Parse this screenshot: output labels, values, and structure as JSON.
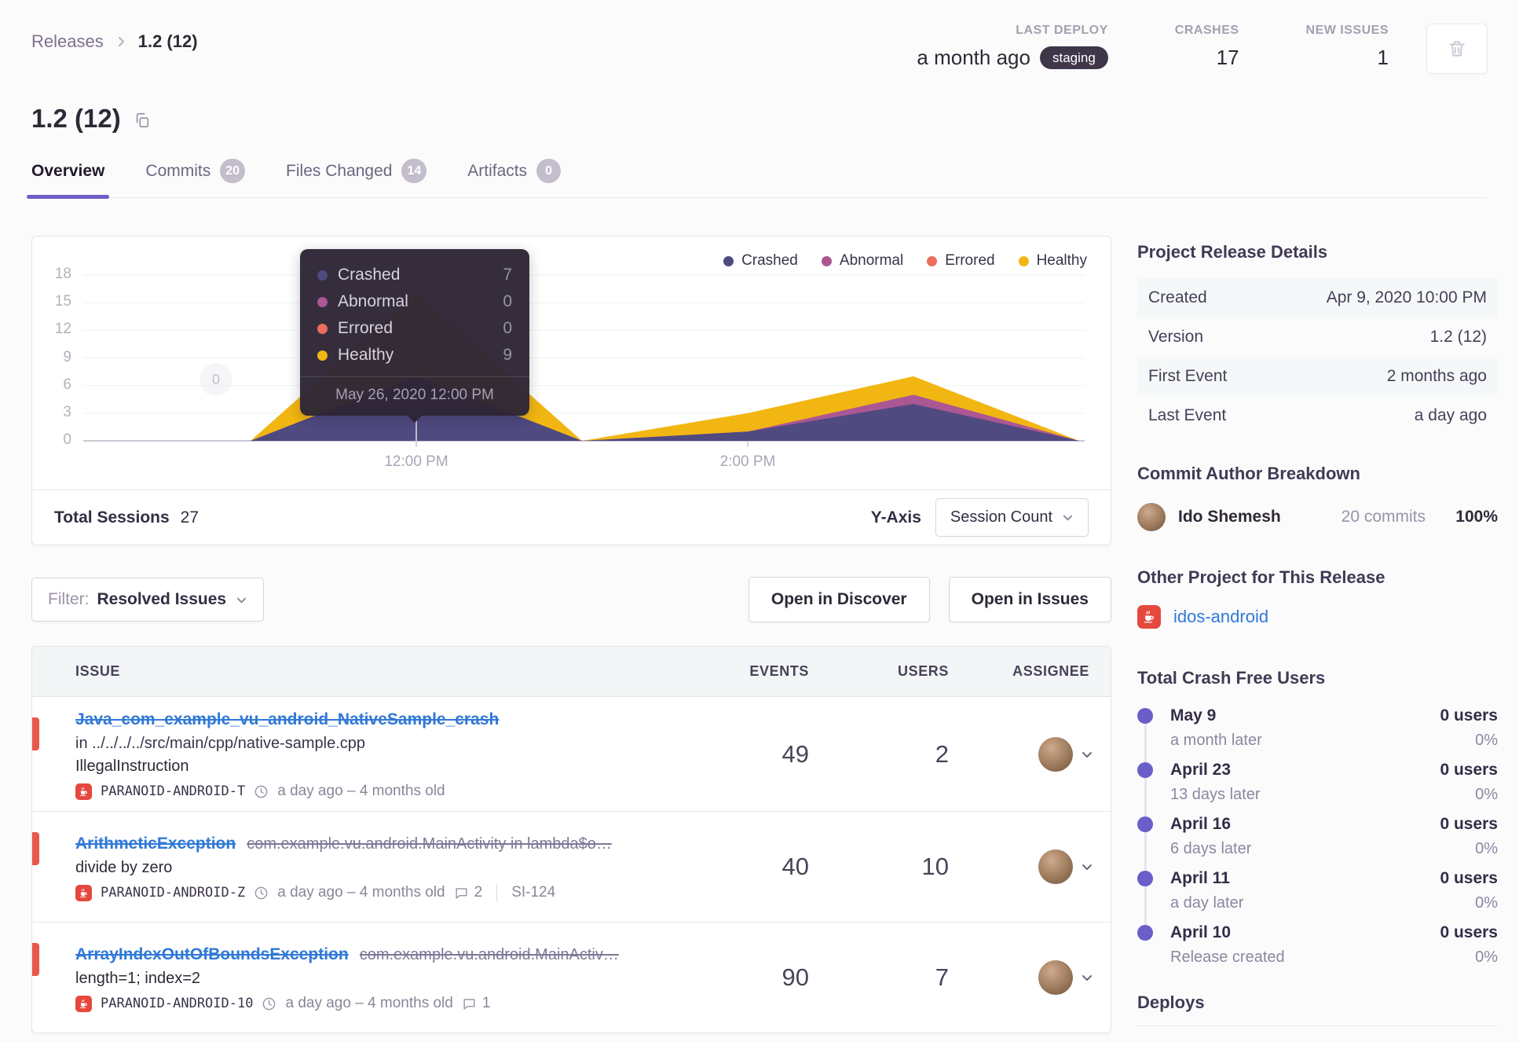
{
  "breadcrumb": {
    "parent": "Releases",
    "current": "1.2 (12)"
  },
  "header_stats": {
    "last_deploy": {
      "label": "LAST DEPLOY",
      "value": "a month ago",
      "env": "staging"
    },
    "crashes": {
      "label": "CRASHES",
      "value": "17"
    },
    "new_issues": {
      "label": "NEW ISSUES",
      "value": "1"
    }
  },
  "page_title": "1.2 (12)",
  "tabs": [
    {
      "label": "Overview"
    },
    {
      "label": "Commits",
      "badge": "20"
    },
    {
      "label": "Files Changed",
      "badge": "14"
    },
    {
      "label": "Artifacts",
      "badge": "0"
    }
  ],
  "chart_card": {
    "tooltip": {
      "values": [
        "7",
        "0",
        "0",
        "9"
      ],
      "date": "May 26, 2020 12:00 PM"
    },
    "overlay_marker": "0",
    "footer": {
      "total_label": "Total Sessions",
      "total_value": "27",
      "yaxis_label": "Y-Axis",
      "yaxis_value": "Session Count"
    }
  },
  "chart_data": {
    "type": "area",
    "stacked": true,
    "title": "Release session health over time",
    "x": [
      "10:00 AM",
      "11:00 AM",
      "12:00 PM",
      "1:00 PM",
      "2:00 PM",
      "3:00 PM",
      "4:00 PM"
    ],
    "x_axis_labels": [
      {
        "label": "12:00 PM",
        "index": 2
      },
      {
        "label": "2:00 PM",
        "index": 4
      }
    ],
    "series": [
      {
        "name": "Crashed",
        "color": "#4F4A80",
        "values": [
          0,
          0,
          7,
          0,
          1,
          4,
          0
        ]
      },
      {
        "name": "Abnormal",
        "color": "#AB5793",
        "values": [
          0,
          0,
          0,
          0,
          0,
          1,
          0
        ]
      },
      {
        "name": "Errored",
        "color": "#EC6D5E",
        "values": [
          0,
          0,
          0,
          0,
          0,
          0,
          0
        ]
      },
      {
        "name": "Healthy",
        "color": "#F1B611",
        "values": [
          0,
          0,
          9,
          0,
          2,
          2,
          0
        ]
      }
    ],
    "ylim": [
      0,
      18
    ],
    "yticks": [
      0,
      3,
      6,
      9,
      12,
      15,
      18
    ],
    "legend_position": "top-right",
    "grid": true,
    "hover_point": {
      "x": "12:00 PM",
      "crashed": 7,
      "abnormal": 0,
      "errored": 0,
      "healthy": 9
    },
    "total_sessions": 27
  },
  "filter_bar": {
    "filter_label": "Filter:",
    "filter_value": "Resolved Issues",
    "open_discover": "Open in Discover",
    "open_issues": "Open in Issues"
  },
  "issues_table": {
    "columns": [
      "ISSUE",
      "EVENTS",
      "USERS",
      "ASSIGNEE"
    ],
    "rows": [
      {
        "title": "Java_com_example_vu_android_NativeSample_crash",
        "location": "in ../../../../src/main/cpp/native-sample.cpp",
        "message": "IllegalInstruction",
        "project": "PARANOID-ANDROID-T",
        "age": "a day ago – 4 months old",
        "events": "49",
        "users": "2"
      },
      {
        "title": "ArithmeticException",
        "title_suffix": "com.example.vu.android.MainActivity in lambda$o…",
        "message": "divide by zero",
        "project": "PARANOID-ANDROID-Z",
        "age": "a day ago – 4 months old",
        "comments": "2",
        "short_id": "SI-124",
        "events": "40",
        "users": "10"
      },
      {
        "title": "ArrayIndexOutOfBoundsException",
        "title_suffix": "com.example.vu.android.MainActiv…",
        "message": "length=1; index=2",
        "project": "PARANOID-ANDROID-10",
        "age": "a day ago – 4 months old",
        "comments": "1",
        "events": "90",
        "users": "7"
      }
    ]
  },
  "sidebar": {
    "release_details": {
      "title": "Project Release Details",
      "rows": [
        {
          "label": "Created",
          "value": "Apr 9, 2020 10:00 PM"
        },
        {
          "label": "Version",
          "value": "1.2 (12)"
        },
        {
          "label": "First Event",
          "value": "2 months ago"
        },
        {
          "label": "Last Event",
          "value": "a day ago"
        }
      ]
    },
    "commit_authors": {
      "title": "Commit Author Breakdown",
      "entries": [
        {
          "name": "Ido Shemesh",
          "commits": "20 commits",
          "percent": "100%"
        }
      ]
    },
    "other_projects": {
      "title": "Other Project for This Release",
      "links": [
        {
          "label": "idos-android"
        }
      ]
    },
    "crash_free": {
      "title": "Total Crash Free Users",
      "entries": [
        {
          "date": "May 9",
          "rel": "a month later",
          "users": "0 users",
          "pct": "0%"
        },
        {
          "date": "April 23",
          "rel": "13 days later",
          "users": "0 users",
          "pct": "0%"
        },
        {
          "date": "April 16",
          "rel": "6 days later",
          "users": "0 users",
          "pct": "0%"
        },
        {
          "date": "April 11",
          "rel": "a day later",
          "users": "0 users",
          "pct": "0%"
        },
        {
          "date": "April 10",
          "rel": "Release created",
          "users": "0 users",
          "pct": "0%"
        }
      ]
    },
    "deploys_title": "Deploys"
  }
}
